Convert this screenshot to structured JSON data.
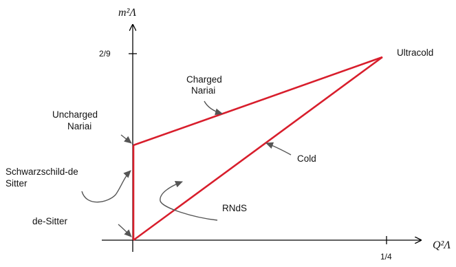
{
  "diagram": {
    "axes": {
      "y_title": "m²Λ",
      "x_title": "Q²Λ",
      "y_tick": "2/9",
      "x_tick": "1/4"
    },
    "labels": {
      "ultracold": "Ultracold",
      "charged_nariai_1": "Charged",
      "charged_nariai_2": "Nariai",
      "uncharged_nariai_1": "Uncharged",
      "uncharged_nariai_2": "Nariai",
      "schwarzschild_1": "Schwarzschild-de",
      "schwarzschild_2": "Sitter",
      "cold": "Cold",
      "rnds": "RNdS",
      "de_sitter": "de-Sitter"
    },
    "colors": {
      "boundary": "#d81e2c",
      "axis": "#000000",
      "arrow": "#555555"
    }
  }
}
